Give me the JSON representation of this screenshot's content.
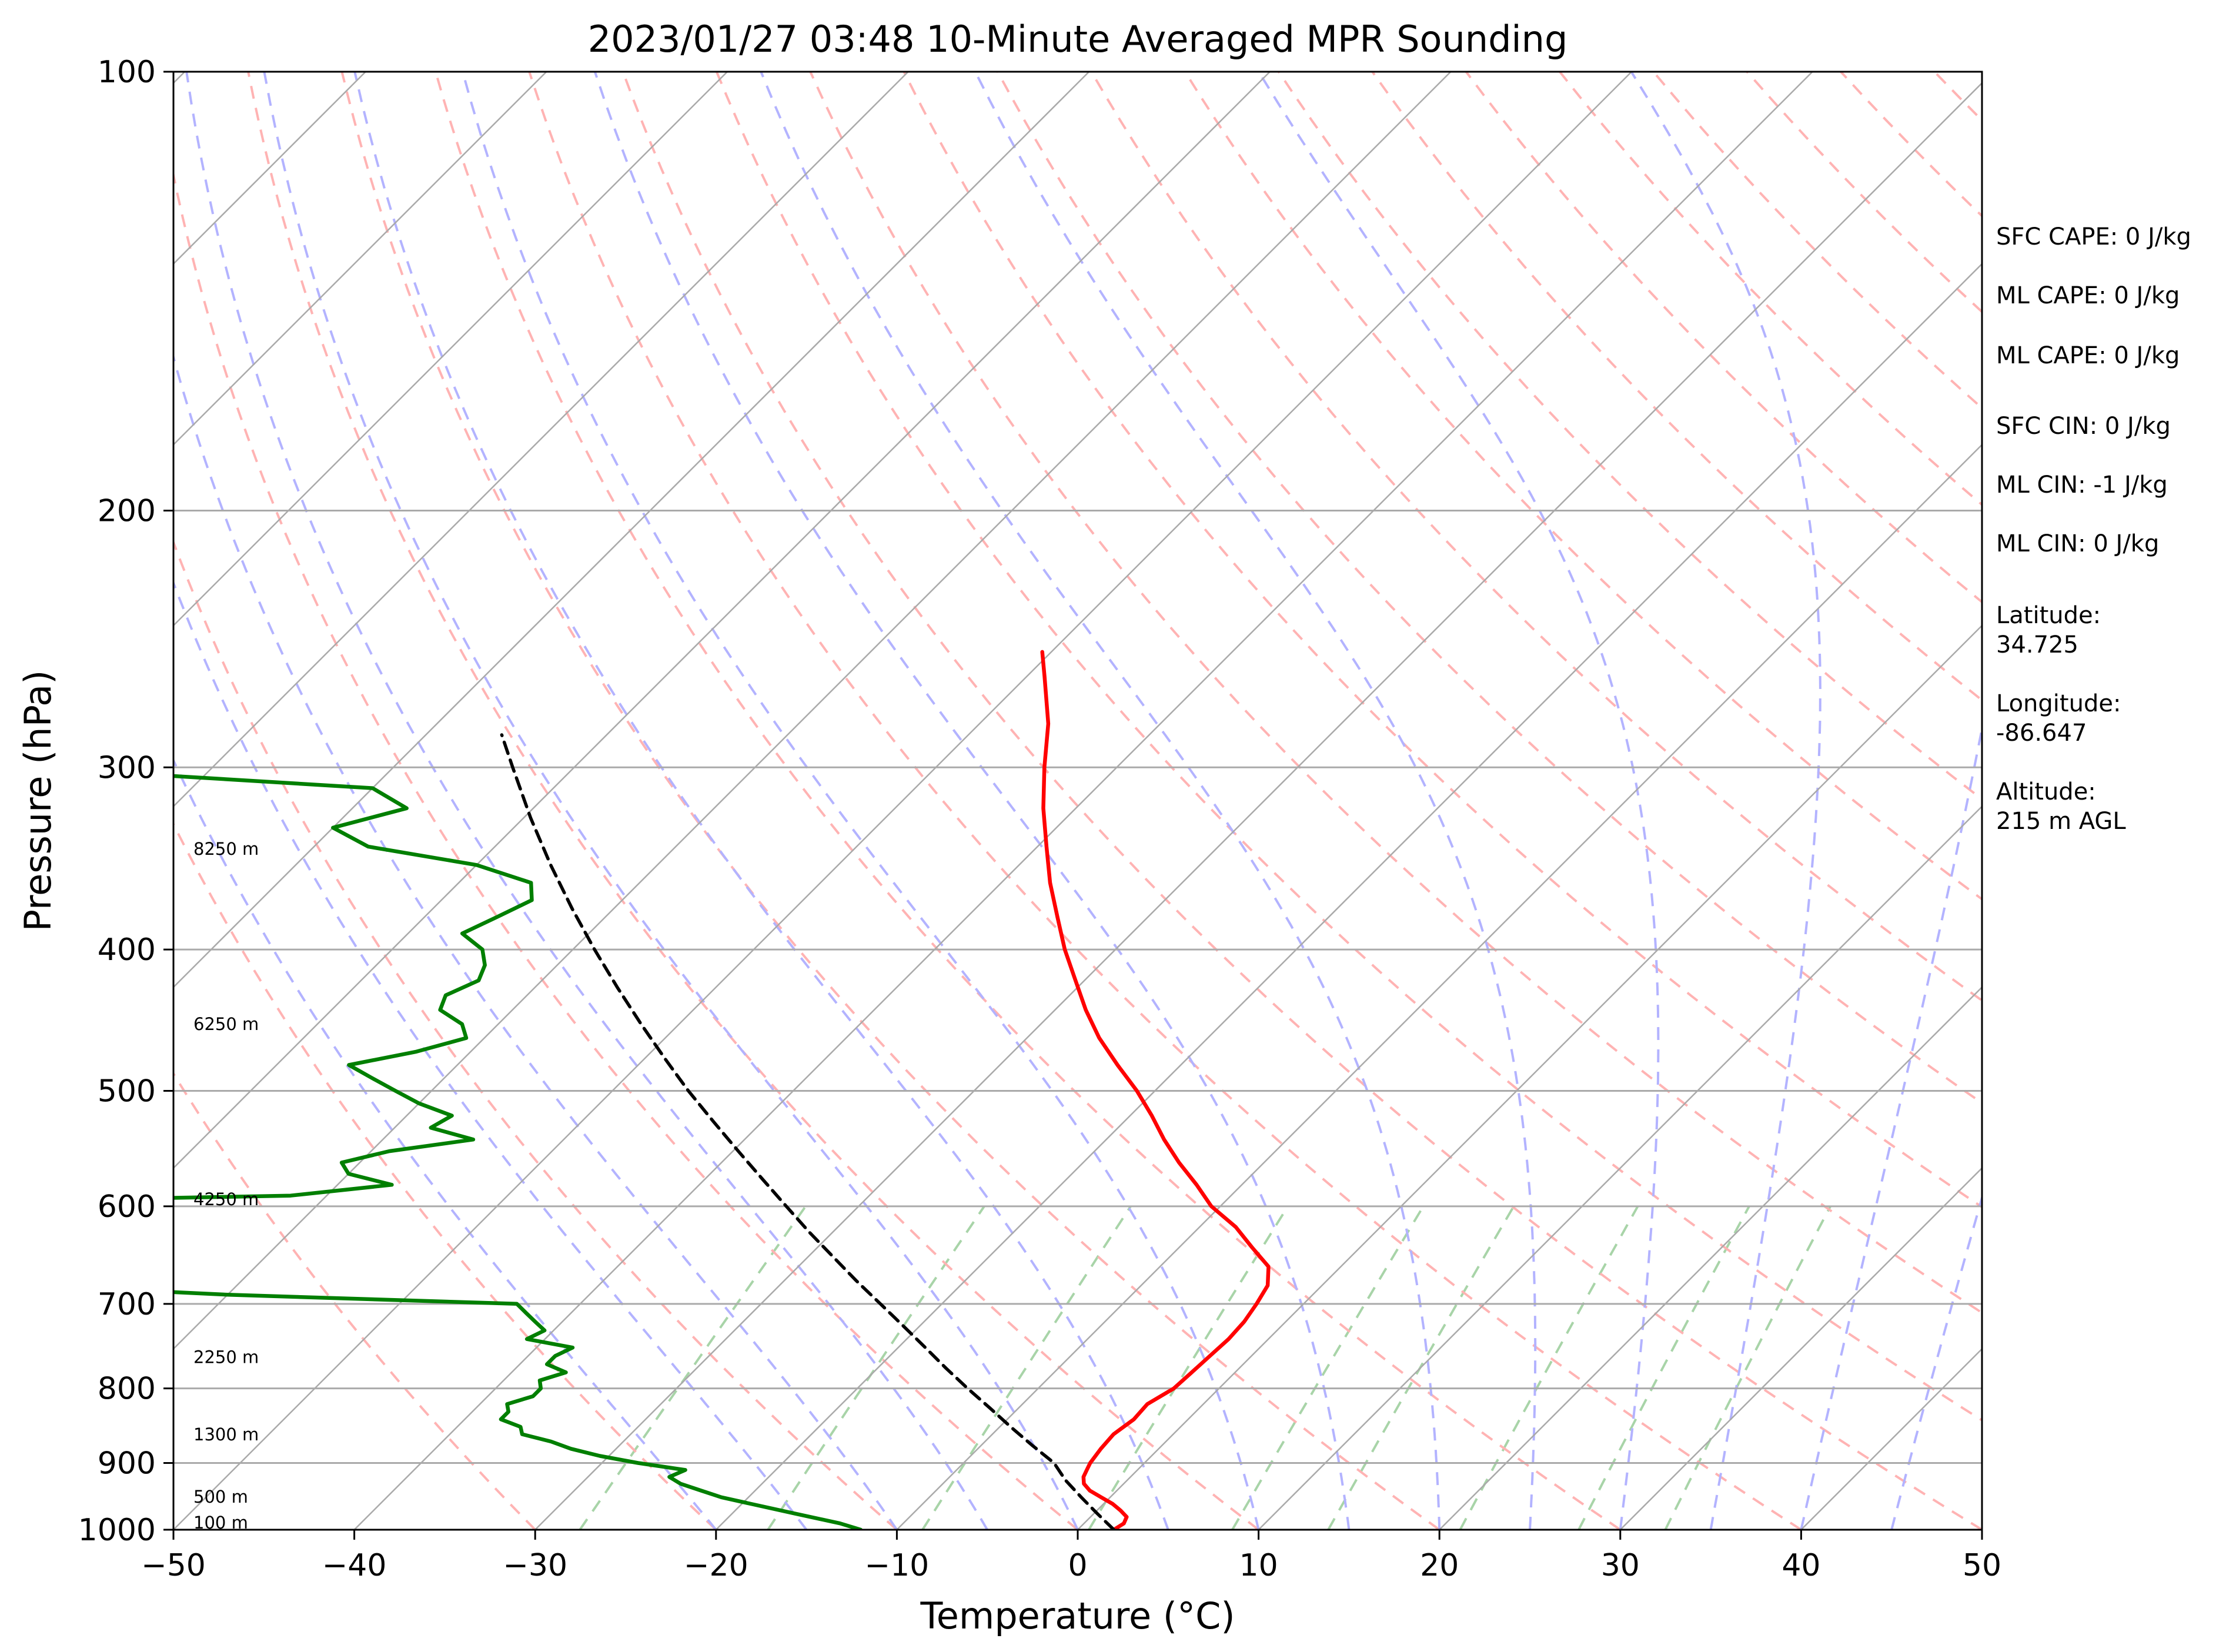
{
  "chart_data": {
    "type": "line",
    "title": "2023/01/27 03:48 10-Minute Averaged MPR Sounding",
    "xlabel": "Temperature (°C)",
    "ylabel": "Pressure (hPa)",
    "xlim": [
      -50,
      50
    ],
    "ylim": [
      1000,
      100
    ],
    "y_scale": "log",
    "skew": "skew-T log-p",
    "x_ticks": [
      -50,
      -40,
      -30,
      -20,
      -10,
      0,
      10,
      20,
      30,
      40,
      50
    ],
    "x_tick_labels": [
      "−50",
      "−40",
      "−30",
      "−20",
      "−10",
      "0",
      "10",
      "20",
      "30",
      "40",
      "50"
    ],
    "y_ticks": [
      1000,
      900,
      800,
      700,
      600,
      500,
      400,
      300,
      200,
      100
    ],
    "y_tick_labels": [
      "1000",
      "900",
      "800",
      "700",
      "600",
      "500",
      "400",
      "300",
      "200",
      "100"
    ],
    "grid": true,
    "series": [
      {
        "id": "temperature",
        "color": "#ff0000",
        "p": [
          1000,
          990,
          980,
          970,
          960,
          950,
          940,
          930,
          920,
          910,
          900,
          880,
          860,
          840,
          820,
          800,
          780,
          760,
          740,
          720,
          700,
          680,
          660,
          640,
          620,
          600,
          580,
          560,
          540,
          520,
          500,
          480,
          460,
          440,
          420,
          400,
          380,
          360,
          340,
          320,
          300,
          280,
          260,
          250
        ],
        "t": [
          2.0,
          2.2,
          2.0,
          1.3,
          0.5,
          -0.5,
          -1.5,
          -2.2,
          -2.6,
          -2.8,
          -3.0,
          -3.2,
          -3.3,
          -3.0,
          -3.1,
          -2.5,
          -2.4,
          -2.3,
          -2.2,
          -2.3,
          -2.6,
          -3.0,
          -4.0,
          -6.0,
          -8.0,
          -10.5,
          -12.5,
          -14.7,
          -16.8,
          -18.8,
          -21.0,
          -23.5,
          -26.0,
          -28.3,
          -30.5,
          -32.8,
          -35.0,
          -37.3,
          -39.5,
          -41.8,
          -44.0,
          -46.2,
          -49.0,
          -50.5
        ]
      },
      {
        "id": "dewpoint",
        "color": "#007f00",
        "p": [
          1000,
          990,
          975,
          960,
          950,
          940,
          930,
          920,
          910,
          900,
          890,
          880,
          870,
          860,
          850,
          840,
          830,
          820,
          810,
          800,
          790,
          780,
          770,
          760,
          750,
          740,
          730,
          720,
          710,
          700,
          690,
          680,
          670,
          660,
          640,
          620,
          600,
          590,
          580,
          570,
          560,
          550,
          540,
          530,
          520,
          510,
          500,
          490,
          480,
          470,
          460,
          450,
          440,
          430,
          420,
          410,
          400,
          390,
          380,
          370,
          360,
          350,
          340,
          330,
          320,
          310,
          300,
          290,
          280,
          270,
          260,
          250
        ],
        "t": [
          -12.0,
          -13.5,
          -16.5,
          -19.5,
          -21.5,
          -23.0,
          -24.5,
          -25.5,
          -25.0,
          -28.0,
          -30.5,
          -32.5,
          -34.0,
          -36.0,
          -36.5,
          -38.0,
          -38.0,
          -38.5,
          -37.5,
          -37.5,
          -38.0,
          -37.0,
          -38.5,
          -38.5,
          -38.0,
          -41.0,
          -40.5,
          -41.5,
          -42.5,
          -43.5,
          -60.0,
          -71.0,
          -80.0,
          -85.0,
          -88.0,
          -90.0,
          -92.0,
          -62.0,
          -57.0,
          -60.0,
          -61.0,
          -59.0,
          -55.0,
          -58.0,
          -57.5,
          -60.0,
          -62.0,
          -64.0,
          -66.0,
          -63.0,
          -61.0,
          -62.0,
          -64.0,
          -64.5,
          -63.5,
          -64.0,
          -65.0,
          -67.0,
          -66.0,
          -65.0,
          -66.0,
          -70.0,
          -77.0,
          -80.0,
          -77.0,
          -80.0,
          -100.0,
          -100.0,
          -100.0,
          -100.0,
          -100.0,
          -100.0
        ]
      },
      {
        "id": "parcel",
        "color": "#000000",
        "style": "dashed",
        "p": [
          1000,
          975,
          950,
          925,
          900,
          875,
          850,
          825,
          800,
          775,
          750,
          725,
          700,
          675,
          650,
          625,
          600,
          575,
          550,
          525,
          500,
          475,
          450,
          425,
          400,
          375,
          350,
          325,
          300,
          285
        ],
        "t": [
          2.0,
          0.2,
          -1.6,
          -3.4,
          -5.0,
          -7.2,
          -9.4,
          -11.6,
          -13.9,
          -16.2,
          -18.5,
          -20.9,
          -23.4,
          -26.0,
          -28.6,
          -31.3,
          -34.0,
          -36.8,
          -39.7,
          -42.7,
          -45.8,
          -48.9,
          -52.1,
          -55.4,
          -58.8,
          -62.3,
          -65.9,
          -69.6,
          -73.4,
          -75.8
        ]
      }
    ],
    "height_labels": [
      "100 m",
      "500 m",
      "1300 m",
      "2250 m",
      "4250 m",
      "6250 m",
      "8250 m"
    ],
    "height_label_pressures": [
      1000,
      960,
      870,
      770,
      600,
      455,
      345
    ],
    "background": {
      "isotherm_color": "#aaaaaa",
      "dry_adiabat_color": "#ffb3b3",
      "moist_adiabat_color": "#b3b3ff",
      "mixing_ratio_color": "#99cc99"
    }
  },
  "side_panel": [
    "SFC CAPE: 0 J/kg",
    "ML CAPE: 0 J/kg",
    "ML CAPE: 0 J/kg",
    "SFC CIN: 0 J/kg",
    "ML CIN: -1 J/kg",
    "ML CIN: 0 J/kg",
    "Latitude:",
    "34.725",
    "Longitude:",
    "-86.647",
    "Altitude:",
    "215 m AGL"
  ]
}
